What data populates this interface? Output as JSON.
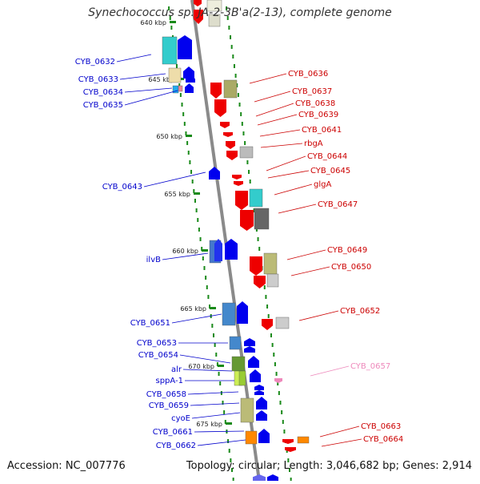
{
  "title": "Synechococcus sp. JA-2-3B'a(2-13), complete genome",
  "footer": {
    "accession": "Accession: NC_007776",
    "topology": "Topology: circular; Length: 3,046,682 bp; Genes: 2,914"
  },
  "kbp_ticks": [
    "640 kbp",
    "645 kbp",
    "650 kbp",
    "655 kbp",
    "660 kbp",
    "665 kbp",
    "670 kbp",
    "675 kbp"
  ],
  "colors": {
    "left_label": "#0000cc",
    "right_label": "#cc0000",
    "faded_label": "#ee88bb",
    "strand_dots": "#1a8a1a",
    "backbone": "#8a8a8a"
  },
  "left_labels": [
    "CYB_0632",
    "CYB_0633",
    "CYB_0634",
    "CYB_0635",
    "CYB_0643",
    "ilvB",
    "CYB_0651",
    "CYB_0653",
    "CYB_0654",
    "alr",
    "sppA-1",
    "CYB_0658",
    "CYB_0659",
    "cyoE",
    "CYB_0661",
    "CYB_0662"
  ],
  "right_labels": [
    "CYB_0636",
    "CYB_0637",
    "CYB_0638",
    "CYB_0639",
    "CYB_0641",
    "rbgA",
    "CYB_0644",
    "CYB_0645",
    "glgA",
    "CYB_0647",
    "CYB_0649",
    "CYB_0650",
    "CYB_0652",
    "CYB_0657",
    "CYB_0663",
    "CYB_0664"
  ]
}
